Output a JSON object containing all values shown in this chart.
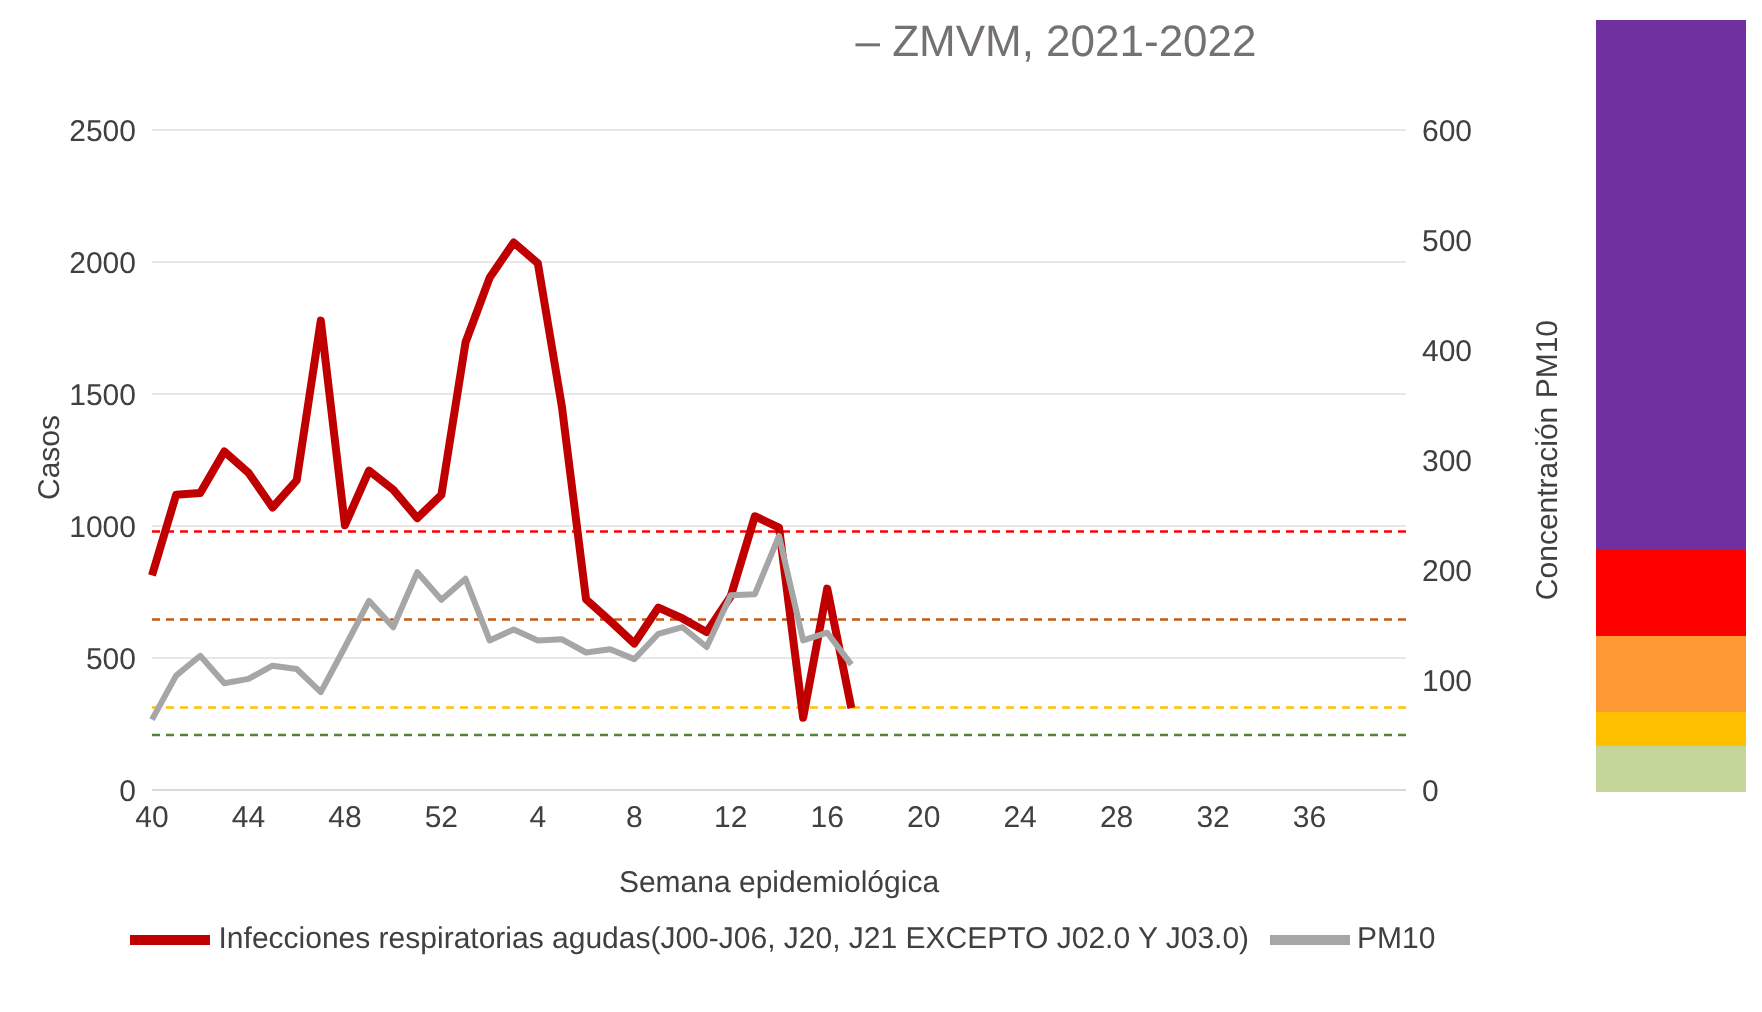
{
  "chart_data": {
    "type": "line",
    "title": "– ZMVM, 2021-2022",
    "xlabel": "Semana epidemiológica",
    "ylabel": "Casos",
    "y2label": "Concentración PM10",
    "categories": [
      "40",
      null,
      null,
      null,
      "44",
      null,
      null,
      null,
      "48",
      null,
      null,
      null,
      "52",
      null,
      null,
      null,
      "4",
      null,
      null,
      null,
      "8",
      null,
      null,
      null,
      "12",
      null,
      null,
      null,
      "16",
      null,
      null,
      null,
      "20",
      null,
      null,
      null,
      "24",
      null,
      null,
      null,
      "28",
      null,
      null,
      null,
      "32",
      null,
      null,
      null,
      "36",
      null,
      null,
      null,
      null
    ],
    "series": [
      {
        "name": "Infecciones respiratorias agudas(J00-J06, J20, J21 EXCEPTO J02.0 Y J03.0)",
        "color": "#c00000",
        "values": [
          813,
          1118,
          1125,
          1282,
          1202,
          1070,
          1173,
          1778,
          1003,
          1210,
          1138,
          1030,
          1118,
          1695,
          1940,
          2074,
          1995,
          1450,
          722,
          640,
          555,
          691,
          650,
          598,
          734,
          1037,
          994,
          274,
          763,
          310,
          null,
          null,
          null,
          null,
          null,
          null,
          null,
          null,
          null,
          null,
          null,
          null,
          null,
          null,
          null,
          null,
          null,
          null,
          null,
          null,
          null,
          null,
          null
        ]
      },
      {
        "name": "PM10",
        "color": "#a6a6a6",
        "axis": "y2",
        "values": [
          64,
          104,
          122,
          97,
          101,
          113,
          110,
          89,
          130,
          172,
          148,
          198,
          173,
          192,
          136,
          146,
          136,
          137,
          125,
          128,
          119,
          142,
          148,
          130,
          177,
          178,
          231,
          136,
          143,
          114,
          null,
          null,
          null,
          null,
          null,
          null,
          null,
          null,
          null,
          null,
          null,
          null,
          null,
          null,
          null,
          null,
          null,
          null,
          null,
          null,
          null,
          null,
          null
        ]
      }
    ],
    "ylim": [
      0,
      2500
    ],
    "yticks": [
      0,
      500,
      1000,
      1500,
      2000,
      2500
    ],
    "y2lim": [
      0,
      600
    ],
    "y2ticks": [
      0,
      100,
      200,
      300,
      400,
      500,
      600
    ],
    "ref_lines": [
      {
        "axis": "y2",
        "value": 235,
        "color": "#ff0000",
        "line_style": "dashed"
      },
      {
        "axis": "y2",
        "value": 155,
        "color": "#c55a11",
        "line_style": "dashed"
      },
      {
        "axis": "y2",
        "value": 75,
        "color": "#ffc000",
        "line_style": "dashed"
      },
      {
        "axis": "y2",
        "value": 50,
        "color": "#548235",
        "line_style": "dashed"
      }
    ],
    "grid": "y",
    "legend": "bottom",
    "marker": "none",
    "line_style": "solid"
  }
}
